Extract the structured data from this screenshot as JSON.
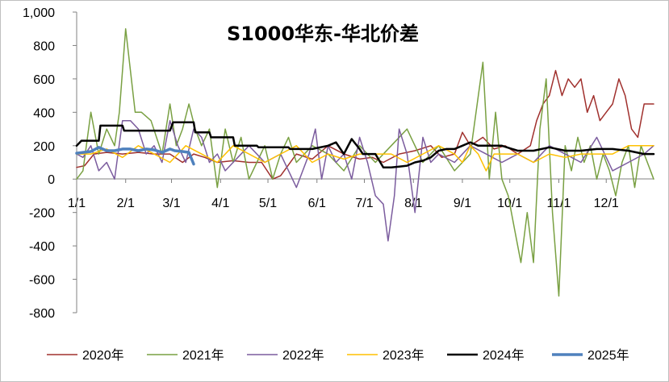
{
  "chart_data": {
    "type": "line",
    "title": "S1000华东-华北价差",
    "xlabel": "",
    "ylabel": "",
    "ylim": [
      -800,
      1000
    ],
    "yticks": [
      -800,
      -600,
      -400,
      -200,
      0,
      200,
      400,
      600,
      800,
      1000
    ],
    "ytick_labels": [
      "-800",
      "-600",
      "-400",
      "-200",
      "0",
      "200",
      "400",
      "600",
      "800",
      "1,000"
    ],
    "xlim": [
      1,
      366
    ],
    "xticks": [
      1,
      32,
      61,
      92,
      122,
      153,
      183,
      214,
      245,
      275,
      306,
      336
    ],
    "xtick_labels": [
      "1/1",
      "2/1",
      "3/1",
      "4/1",
      "5/1",
      "6/1",
      "7/1",
      "8/1",
      "9/1",
      "10/1",
      "11/1",
      "12/1"
    ],
    "grid": false,
    "legend_position": "bottom",
    "series": [
      {
        "name": "2020年",
        "color": "#a0302d",
        "width": 1.5,
        "x": [
          1,
          6,
          12,
          20,
          30,
          40,
          50,
          60,
          68,
          75,
          82,
          90,
          100,
          110,
          118,
          125,
          130,
          140,
          150,
          160,
          170,
          180,
          188,
          195,
          205,
          215,
          225,
          232,
          240,
          245,
          250,
          258,
          265,
          272,
          280,
          288,
          292,
          296,
          300,
          304,
          308,
          312,
          316,
          320,
          324,
          328,
          332,
          336,
          340,
          344,
          348,
          352,
          356,
          360,
          366
        ],
        "values": [
          70,
          80,
          150,
          160,
          150,
          160,
          150,
          150,
          100,
          150,
          130,
          100,
          110,
          100,
          100,
          0,
          20,
          150,
          120,
          200,
          150,
          120,
          130,
          100,
          150,
          170,
          200,
          130,
          150,
          280,
          200,
          250,
          180,
          200,
          150,
          200,
          350,
          450,
          500,
          650,
          500,
          600,
          550,
          600,
          400,
          500,
          350,
          400,
          450,
          600,
          500,
          300,
          250,
          450,
          450
        ]
      },
      {
        "name": "2021年",
        "color": "#79a042",
        "width": 1.5,
        "x": [
          1,
          5,
          10,
          15,
          20,
          25,
          28,
          32,
          35,
          38,
          42,
          48,
          55,
          60,
          64,
          68,
          72,
          76,
          80,
          85,
          90,
          95,
          100,
          105,
          110,
          115,
          120,
          125,
          130,
          135,
          140,
          150,
          160,
          170,
          180,
          190,
          200,
          210,
          220,
          230,
          240,
          250,
          258,
          262,
          266,
          270,
          274,
          278,
          282,
          286,
          290,
          294,
          298,
          302,
          306,
          310,
          314,
          318,
          322,
          326,
          330,
          334,
          338,
          342,
          346,
          350,
          354,
          358,
          362,
          366
        ],
        "values": [
          0,
          50,
          400,
          150,
          300,
          200,
          400,
          900,
          650,
          400,
          400,
          350,
          150,
          450,
          200,
          300,
          450,
          300,
          200,
          300,
          -50,
          300,
          100,
          250,
          0,
          100,
          200,
          0,
          150,
          250,
          100,
          200,
          150,
          50,
          200,
          100,
          200,
          300,
          100,
          200,
          50,
          150,
          700,
          0,
          400,
          0,
          -100,
          -300,
          -500,
          -200,
          -500,
          300,
          600,
          -200,
          -700,
          200,
          50,
          250,
          100,
          200,
          0,
          150,
          50,
          -100,
          100,
          200,
          -50,
          200,
          100,
          0
        ]
      },
      {
        "name": "2022年",
        "color": "#7b5c9e",
        "width": 1.5,
        "x": [
          1,
          5,
          10,
          15,
          20,
          25,
          30,
          35,
          40,
          45,
          50,
          55,
          60,
          65,
          70,
          75,
          80,
          85,
          90,
          95,
          100,
          110,
          120,
          130,
          140,
          148,
          152,
          156,
          160,
          165,
          170,
          175,
          180,
          185,
          190,
          195,
          198,
          202,
          205,
          210,
          215,
          220,
          225,
          230,
          240,
          250,
          260,
          270,
          280,
          290,
          300,
          310,
          320,
          330,
          340,
          350,
          360,
          366
        ],
        "values": [
          150,
          130,
          200,
          50,
          100,
          0,
          350,
          350,
          300,
          150,
          200,
          100,
          350,
          200,
          100,
          300,
          250,
          100,
          150,
          50,
          100,
          200,
          100,
          150,
          -50,
          150,
          300,
          0,
          200,
          100,
          150,
          0,
          250,
          100,
          -100,
          -150,
          -370,
          -100,
          300,
          150,
          -200,
          250,
          100,
          150,
          100,
          200,
          150,
          100,
          150,
          100,
          200,
          150,
          100,
          250,
          50,
          100,
          150,
          200
        ]
      },
      {
        "name": "2023年",
        "color": "#ffc000",
        "width": 1.5,
        "x": [
          1,
          10,
          20,
          30,
          40,
          50,
          60,
          70,
          80,
          90,
          100,
          110,
          120,
          130,
          140,
          150,
          160,
          170,
          180,
          190,
          200,
          210,
          220,
          230,
          240,
          245,
          250,
          255,
          260,
          265,
          270,
          280,
          290,
          300,
          310,
          320,
          330,
          340,
          350,
          360,
          366
        ],
        "values": [
          150,
          150,
          180,
          130,
          200,
          150,
          100,
          200,
          150,
          100,
          200,
          150,
          100,
          150,
          200,
          100,
          150,
          120,
          150,
          150,
          150,
          100,
          150,
          200,
          150,
          100,
          200,
          150,
          50,
          150,
          150,
          150,
          100,
          150,
          130,
          150,
          150,
          150,
          200,
          200,
          200
        ]
      },
      {
        "name": "2024年",
        "color": "#000000",
        "width": 2.5,
        "x": [
          1,
          4,
          8,
          15,
          16,
          30,
          31,
          60,
          62,
          75,
          76,
          85,
          86,
          100,
          101,
          115,
          116,
          135,
          136,
          145,
          150,
          160,
          165,
          170,
          175,
          180,
          182,
          190,
          195,
          200,
          205,
          210,
          215,
          220,
          225,
          230,
          235,
          240,
          245,
          250,
          255,
          260,
          270,
          280,
          290,
          300,
          310,
          320,
          330,
          340,
          350,
          360,
          366
        ],
        "values": [
          200,
          230,
          230,
          230,
          320,
          320,
          290,
          290,
          340,
          340,
          280,
          280,
          250,
          250,
          200,
          200,
          190,
          190,
          180,
          180,
          180,
          200,
          220,
          150,
          240,
          180,
          150,
          150,
          70,
          70,
          75,
          80,
          100,
          110,
          130,
          170,
          180,
          180,
          200,
          220,
          200,
          200,
          200,
          170,
          170,
          190,
          170,
          170,
          180,
          180,
          170,
          150,
          150
        ]
      },
      {
        "name": "2025年",
        "color": "#4f81bd",
        "width": 3.5,
        "x": [
          1,
          5,
          10,
          15,
          20,
          25,
          30,
          35,
          40,
          45,
          50,
          55,
          60,
          63,
          68,
          72,
          75
        ],
        "values": [
          155,
          160,
          165,
          190,
          170,
          170,
          180,
          180,
          170,
          180,
          175,
          160,
          180,
          170,
          165,
          160,
          90
        ]
      }
    ]
  }
}
